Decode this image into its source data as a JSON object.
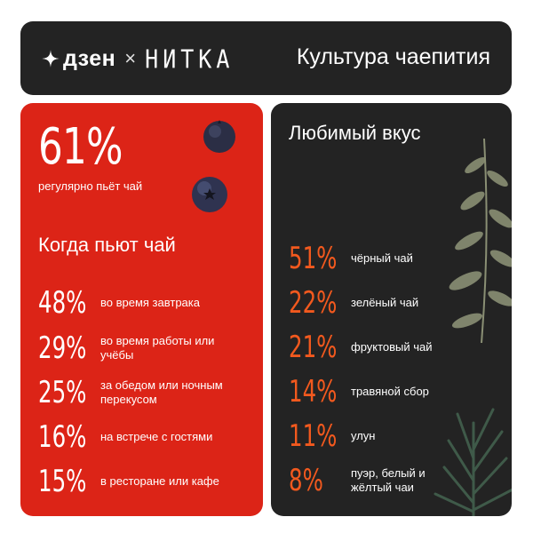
{
  "header": {
    "brand": "дзен",
    "separator": "×",
    "partner": "НИТКА",
    "title": "Культура чаепития"
  },
  "left": {
    "main_pct": "61%",
    "main_caption": "регулярно пьёт чай",
    "section_title": "Когда пьют чай",
    "items": [
      {
        "pct": "48%",
        "label": "во время завтрака"
      },
      {
        "pct": "29%",
        "label": "во время работы или учёбы"
      },
      {
        "pct": "25%",
        "label": "за обедом или ночным перекусом"
      },
      {
        "pct": "16%",
        "label": "на встрече с гостями"
      },
      {
        "pct": "15%",
        "label": "в ресторане или кафе"
      }
    ]
  },
  "right": {
    "section_title": "Любимый вкус",
    "items": [
      {
        "pct": "51%",
        "label": "чёрный чай"
      },
      {
        "pct": "22%",
        "label": "зелёный чай"
      },
      {
        "pct": "21%",
        "label": "фруктовый чай"
      },
      {
        "pct": "14%",
        "label": "травяной сбор"
      },
      {
        "pct": "11%",
        "label": "улун"
      },
      {
        "pct": "8%",
        "label": "пуэр, белый и жёлтый чаи"
      }
    ]
  },
  "colors": {
    "accent_red": "#dc2417",
    "accent_orange": "#f2591e",
    "dark": "#232323"
  },
  "icons": [
    "star-icon",
    "blueberry-icon",
    "leaf-sprig-icon"
  ]
}
